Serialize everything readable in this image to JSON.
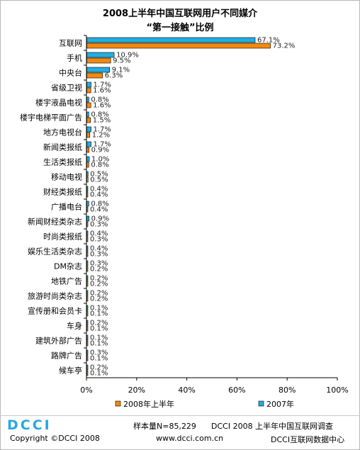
{
  "title_line1": "2008上半年中国互联网用户不同媒介",
  "title_line2": "“第一接触”比例",
  "chart_data": {
    "type": "bar",
    "orientation": "horizontal",
    "categories": [
      "互联网",
      "手机",
      "中央台",
      "省级卫视",
      "楼宇液晶电视",
      "楼宇电梯平面广告",
      "地方电视台",
      "新闻类报纸",
      "生活类报纸",
      "移动电视",
      "财经类报纸",
      "广播电台",
      "新闻财经类杂志",
      "时尚类报纸",
      "娱乐生活类杂志",
      "DM杂志",
      "地铁广告",
      "旅游时尚类杂志",
      "宣传册和会员卡",
      "车身",
      "建筑外部广告",
      "路牌广告",
      "候车亭"
    ],
    "series": [
      {
        "name": "2007年",
        "color": "#22aee0",
        "values": [
          67.1,
          10.9,
          9.1,
          1.7,
          0.8,
          0.8,
          1.7,
          1.7,
          1.0,
          0.5,
          0.4,
          0.8,
          0.9,
          0.4,
          0.4,
          0.3,
          0.2,
          0.2,
          0.1,
          0.2,
          0.1,
          0.3,
          0.2
        ],
        "labels": [
          "67.1%",
          "10.9%",
          "9.1%",
          "1.7%",
          "0.8%",
          "0.8%",
          "1.7%",
          "1.7%",
          "1.0%",
          "0.5%",
          "0.4%",
          "0.8%",
          "0.9%",
          "0.4%",
          "0.4%",
          "0.3%",
          "0.2%",
          "0.2%",
          "0.1%",
          "0.2%",
          "0.1%",
          "0.3%",
          "0.2%"
        ]
      },
      {
        "name": "2008年上半年",
        "color": "#f2890f",
        "values": [
          73.2,
          9.5,
          6.3,
          1.6,
          1.6,
          1.5,
          1.2,
          0.9,
          0.8,
          0.5,
          0.4,
          0.4,
          0.3,
          0.3,
          0.3,
          0.2,
          0.2,
          0.2,
          0.1,
          0.1,
          0.1,
          0.1,
          0.1
        ],
        "labels": [
          "73.2%",
          "9.5%",
          "6.3%",
          "1.6%",
          "1.6%",
          "1.5%",
          "1.2%",
          "0.9%",
          "0.8%",
          "0.5%",
          "0.4%",
          "0.4%",
          "0.3%",
          "0.3%",
          "0.3%",
          "0.2%",
          "0.2%",
          "0.2%",
          "0.1%",
          "0.1%",
          "0.1%",
          "0.1%",
          "0.1%"
        ]
      }
    ],
    "xlim": [
      0,
      100
    ],
    "xticks": [
      "0%",
      "20%",
      "40%",
      "60%",
      "80%",
      "100%"
    ],
    "xtick_values": [
      0,
      20,
      40,
      60,
      80,
      100
    ],
    "legend": [
      {
        "name": "2008年上半年",
        "color": "#f2890f"
      },
      {
        "name": "2007年",
        "color": "#22aee0"
      }
    ],
    "legend_position": "bottom"
  },
  "footer": {
    "logo": "DCCI",
    "copyright": "Copyright ©DCCI 2008",
    "sample": "样本量N=85,229",
    "survey": "DCCI 2008 上半年中国互联网调查",
    "url": "www.dcci.com.cn",
    "center": "DCCI互联网数据中心"
  }
}
